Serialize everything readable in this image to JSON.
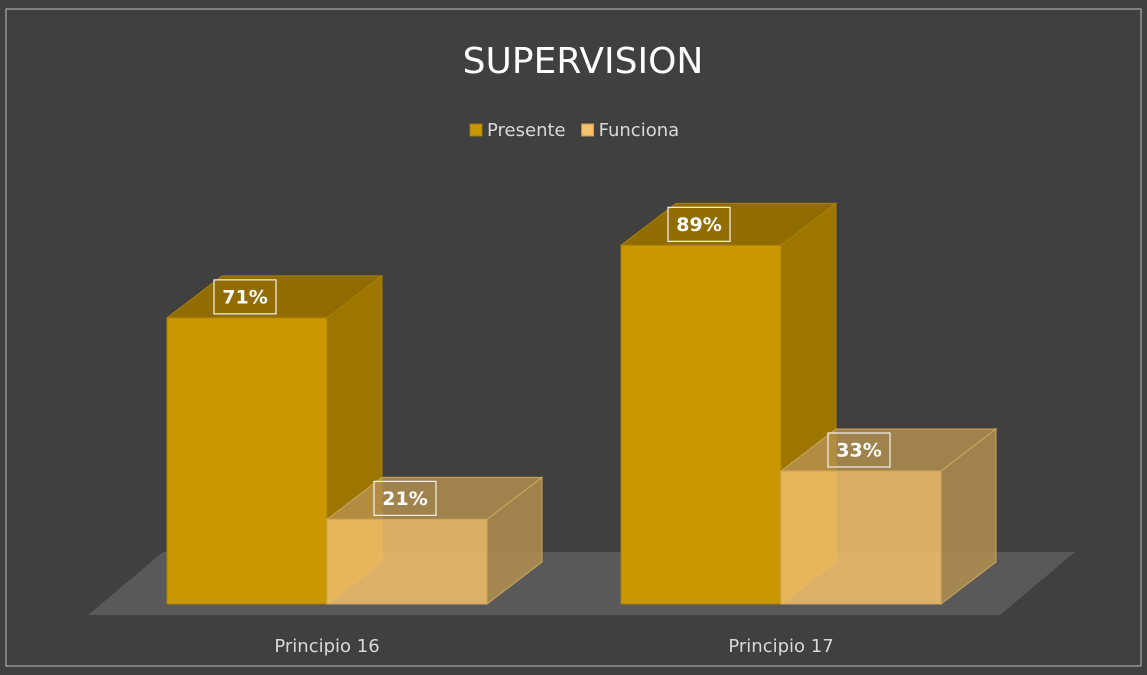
{
  "chart_data": {
    "type": "bar3d",
    "title": "SUPERVISION",
    "categories": [
      "Principio 16",
      "Principio 17"
    ],
    "series": [
      {
        "name": "Presente",
        "color": "#c99700",
        "values": [
          71,
          89
        ],
        "value_labels": [
          "71%",
          "89%"
        ]
      },
      {
        "name": "Funciona",
        "color": "#f5c26b",
        "values": [
          21,
          33
        ],
        "value_labels": [
          "21%",
          "33%"
        ]
      }
    ],
    "ylim": [
      0,
      100
    ],
    "legend": "top"
  }
}
